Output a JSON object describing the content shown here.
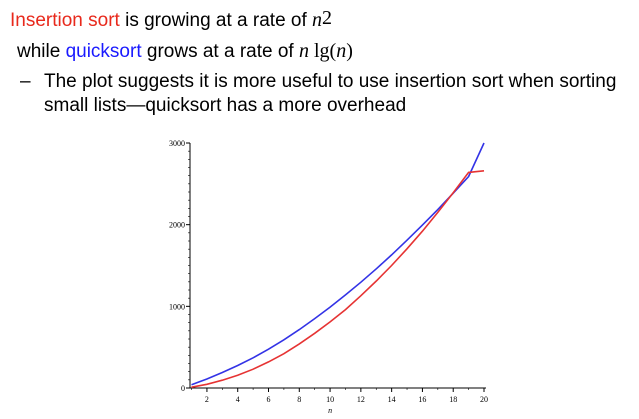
{
  "heading": {
    "line1": {
      "insertion": "Insertion sort",
      "middle": " is growing at a rate of ",
      "var": "n",
      "exp": "2",
      "insertion_color": "#e8291c"
    },
    "line2": {
      "prefix": "while ",
      "quick": "quicksort",
      "middle": " grows at a rate of ",
      "var_n": "n",
      "lg": " lg(",
      "var_n2": "n",
      "close": ")",
      "quick_color": "#1a1aff"
    }
  },
  "bullet": {
    "dash": "–",
    "line1": "The plot suggests it is more useful to use insertion sort when sorting",
    "line2": "small lists—quicksort has a more overhead"
  },
  "chart_data": {
    "type": "line",
    "xlabel": "n",
    "ylabel": "",
    "xlim": [
      0.9,
      20
    ],
    "ylim": [
      0,
      3000
    ],
    "xticks": [
      "2",
      "4",
      "6",
      "8",
      "10",
      "12",
      "14",
      "16",
      "18",
      "20"
    ],
    "yticks": [
      "0",
      "1000",
      "2000",
      "3000"
    ],
    "grid": false,
    "series": [
      {
        "name": "",
        "color": "#3333e6",
        "x": [
          1,
          2,
          3,
          4,
          5,
          6,
          7,
          8,
          9,
          10,
          11,
          12,
          13,
          14,
          15,
          16,
          17,
          18,
          19,
          20
        ],
        "y": [
          40,
          110,
          190,
          275,
          370,
          475,
          590,
          715,
          850,
          990,
          1140,
          1295,
          1460,
          1630,
          1810,
          1995,
          2185,
          2385,
          2590,
          3000
        ]
      },
      {
        "name": "",
        "color": "#e63333",
        "x": [
          1,
          2,
          3,
          4,
          5,
          6,
          7,
          8,
          9,
          10,
          11,
          12,
          13,
          14,
          15,
          16,
          17,
          18,
          19,
          20
        ],
        "y": [
          10,
          45,
          95,
          155,
          230,
          320,
          420,
          540,
          670,
          810,
          960,
          1130,
          1310,
          1500,
          1705,
          1920,
          2150,
          2390,
          2640,
          2660
        ]
      }
    ]
  }
}
